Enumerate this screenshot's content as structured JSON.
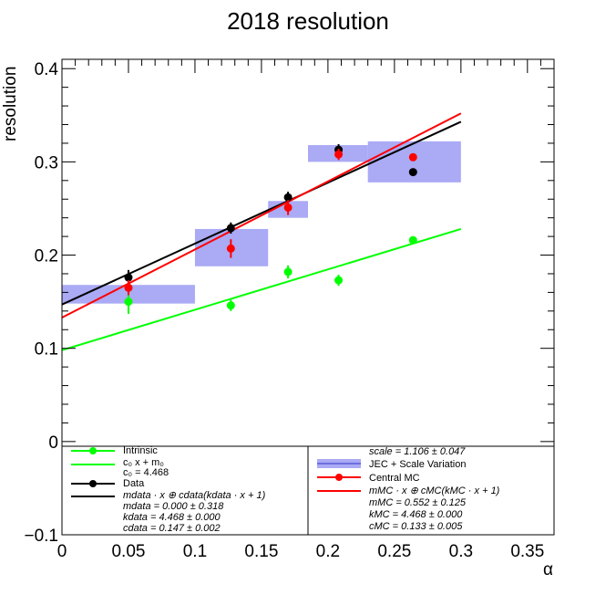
{
  "chart_data": {
    "type": "scatter",
    "title": "2018 resolution",
    "xlabel": "α",
    "ylabel": "resolution",
    "xlim": [
      0,
      0.37
    ],
    "ylim": [
      -0.1,
      0.41
    ],
    "x_ticks": [
      "0",
      "0.05",
      "0.1",
      "0.15",
      "0.2",
      "0.25",
      "0.3",
      "0.35"
    ],
    "y_ticks": [
      "−0.1",
      "0",
      "0.1",
      "0.2",
      "0.3",
      "0.4"
    ],
    "grid": false,
    "series": [
      {
        "key": "intrinsic",
        "name": "Intrinsic",
        "color": "#00ff00",
        "points": [
          {
            "x": 0.05,
            "y": 0.15,
            "err": 0.013
          },
          {
            "x": 0.127,
            "y": 0.146,
            "err": 0.006
          },
          {
            "x": 0.17,
            "y": 0.182,
            "err": 0.007
          },
          {
            "x": 0.208,
            "y": 0.173,
            "err": 0.006
          },
          {
            "x": 0.264,
            "y": 0.216,
            "err": 0.003
          }
        ]
      },
      {
        "key": "data",
        "name": "Data",
        "color": "#000000",
        "points": [
          {
            "x": 0.05,
            "y": 0.176,
            "err": 0.008
          },
          {
            "x": 0.127,
            "y": 0.229,
            "err": 0.006
          },
          {
            "x": 0.17,
            "y": 0.262,
            "err": 0.006
          },
          {
            "x": 0.208,
            "y": 0.313,
            "err": 0.006
          },
          {
            "x": 0.264,
            "y": 0.289,
            "err": 0.004
          }
        ]
      },
      {
        "key": "central_mc",
        "name": "Central MC",
        "color": "#ff0000",
        "points": [
          {
            "x": 0.05,
            "y": 0.165,
            "err": 0.008
          },
          {
            "x": 0.127,
            "y": 0.207,
            "err": 0.01
          },
          {
            "x": 0.17,
            "y": 0.251,
            "err": 0.008
          },
          {
            "x": 0.208,
            "y": 0.308,
            "err": 0.006
          },
          {
            "x": 0.264,
            "y": 0.305,
            "err": 0.004
          }
        ]
      }
    ],
    "fits": [
      {
        "key": "intrinsic_fit",
        "color": "#00ff00",
        "x": [
          0,
          0.3
        ],
        "y": [
          0.098,
          0.228
        ]
      },
      {
        "key": "data_fit",
        "color": "#000000",
        "x": [
          0,
          0.3
        ],
        "y": [
          0.147,
          0.343
        ]
      },
      {
        "key": "mc_fit",
        "color": "#ff0000",
        "x": [
          0,
          0.3
        ],
        "y": [
          0.133,
          0.352
        ]
      }
    ],
    "bands": {
      "name": "JEC + Scale Variation",
      "color": "#aaaaf5",
      "boxes": [
        {
          "x0": 0.0,
          "x1": 0.1,
          "y0": 0.148,
          "y1": 0.168
        },
        {
          "x0": 0.1,
          "x1": 0.155,
          "y0": 0.188,
          "y1": 0.228
        },
        {
          "x0": 0.155,
          "x1": 0.185,
          "y0": 0.24,
          "y1": 0.258
        },
        {
          "x0": 0.185,
          "x1": 0.23,
          "y0": 0.3,
          "y1": 0.318
        },
        {
          "x0": 0.23,
          "x1": 0.3,
          "y0": 0.278,
          "y1": 0.322
        }
      ]
    },
    "legend": {
      "placement": "bottom",
      "left": {
        "intrinsic_label": "Intrinsic",
        "fit0_line1": "c₀ x + m₀",
        "fit0_line2": "c₀ = 4.468",
        "data_label": "Data",
        "data_fit_formula": "mdata · x ⊕ cdata(kdata · x + 1)",
        "m_data": "mdata = 0.000 ± 0.318",
        "k_data": "kdata = 4.468 ± 0.000",
        "c_data": "cdata = 0.147 ± 0.002"
      },
      "right": {
        "scale": "scale = 1.106 ± 0.047",
        "band_label": "JEC + Scale Variation",
        "mc_label": "Central MC",
        "mc_fit_formula": "mMC · x ⊕ cMC(kMC · x + 1)",
        "m_mc": "mMC = 0.552 ± 0.125",
        "k_mc": "kMC = 4.468 ± 0.000",
        "c_mc": "cMC = 0.133 ± 0.005"
      }
    }
  }
}
